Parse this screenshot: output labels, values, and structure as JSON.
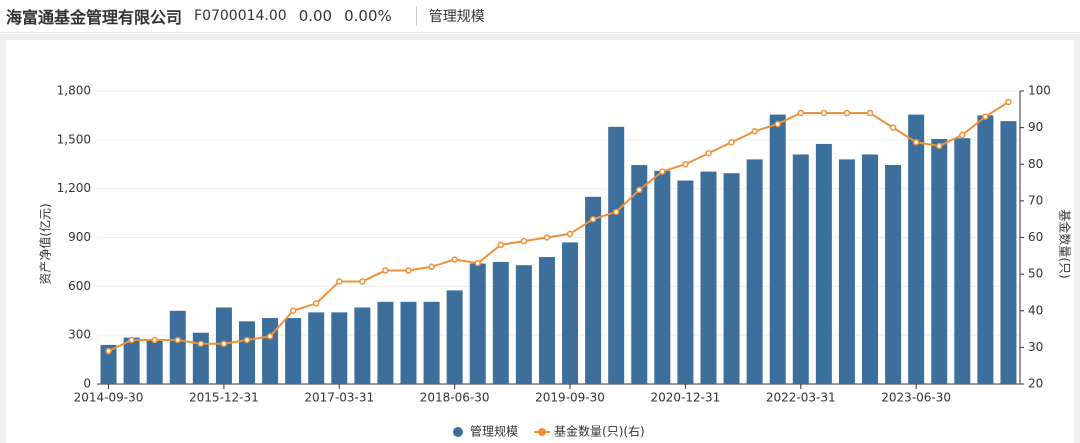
{
  "header": {
    "title": "海富通基金管理有限公司",
    "code": "F0700014.00",
    "change": "0.00",
    "change_pct": "0.00%",
    "tab": "管理规模"
  },
  "chart_data": {
    "type": "bar-line",
    "categories": [
      "2014-09-30",
      null,
      null,
      null,
      null,
      "2015-12-31",
      null,
      null,
      null,
      null,
      "2017-03-31",
      null,
      null,
      null,
      null,
      "2018-06-30",
      null,
      null,
      null,
      null,
      "2019-09-30",
      null,
      null,
      null,
      null,
      "2020-12-31",
      null,
      null,
      null,
      null,
      "2022-03-31",
      null,
      null,
      null,
      null,
      "2023-06-30",
      null,
      null,
      null,
      null
    ],
    "y_label": "资产净值(亿元)",
    "y2_label": "基金数量(只)",
    "ylim": [
      0,
      1800
    ],
    "yticks": [
      0,
      300,
      600,
      900,
      {
        "value": 1200,
        "label": "1,200"
      },
      {
        "value": 1500,
        "label": "1,500"
      },
      {
        "value": 1800,
        "label": "1,800"
      }
    ],
    "y2lim": [
      20,
      100
    ],
    "y2ticks": [
      20,
      30,
      40,
      50,
      60,
      70,
      80,
      90,
      100
    ],
    "grid": true,
    "series": [
      {
        "name": "管理规模",
        "type": "bar",
        "color": "#3d6f9c",
        "values": [
          240,
          285,
          275,
          450,
          315,
          470,
          385,
          405,
          405,
          440,
          440,
          470,
          505,
          505,
          505,
          575,
          740,
          750,
          730,
          780,
          870,
          1150,
          1580,
          1345,
          1310,
          1250,
          1305,
          1295,
          1380,
          1655,
          1410,
          1475,
          1380,
          1410,
          1345,
          1655,
          1505,
          1510,
          1650,
          1615
        ]
      },
      {
        "name": "基金数量(只)(右)",
        "type": "line",
        "axis": "y2",
        "color": "#f0913a",
        "values": [
          29,
          32,
          32,
          32,
          31,
          31,
          32,
          33,
          40,
          42,
          48,
          48,
          51,
          51,
          52,
          54,
          53,
          58,
          59,
          60,
          61,
          65,
          67,
          73,
          78,
          80,
          83,
          86,
          89,
          91,
          94,
          94,
          94,
          94,
          90,
          86,
          85,
          88,
          93,
          97
        ]
      }
    ],
    "legend": "bottom"
  }
}
